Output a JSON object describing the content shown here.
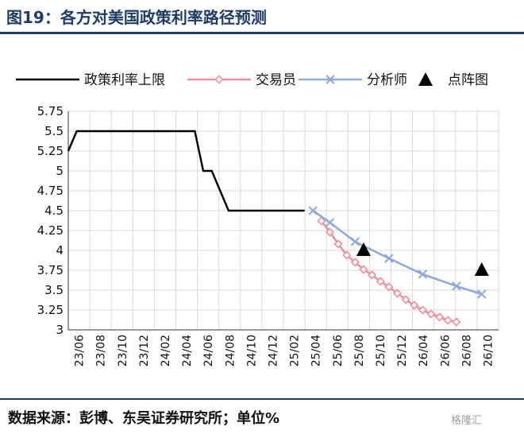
{
  "figure": {
    "title": "图19：各方对美国政策利率路径预测",
    "source": "数据来源：彭博、东吴证券研究所；单位%",
    "watermark": "格隆汇"
  },
  "chart_data": {
    "type": "line",
    "title": "",
    "xlabel": "",
    "ylabel": "",
    "ylim": [
      3,
      5.75
    ],
    "yticks": [
      "5.75",
      "5.5",
      "5.25",
      "5",
      "4.75",
      "4.5",
      "4.25",
      "4",
      "3.75",
      "3.5",
      "3.25",
      "3"
    ],
    "categories": [
      "23/06",
      "23/08",
      "23/10",
      "23/12",
      "24/02",
      "24/04",
      "24/06",
      "24/08",
      "24/10",
      "24/12",
      "25/02",
      "25/04",
      "25/06",
      "25/08",
      "25/10",
      "25/12",
      "26/04",
      "26/06",
      "26/08",
      "26/10"
    ],
    "grid": true,
    "legend_position": "top",
    "legend": [
      "政策利率上限",
      "交易员",
      "分析师",
      "点阵图"
    ],
    "series": [
      {
        "name": "政策利率上限",
        "style": "line",
        "color": "#000000",
        "points": [
          [
            0,
            5.25
          ],
          [
            1,
            5.5
          ],
          [
            2,
            5.5
          ],
          [
            3,
            5.5
          ],
          [
            4,
            5.5
          ],
          [
            5,
            5.5
          ],
          [
            6,
            5.5
          ],
          [
            7,
            5.5
          ],
          [
            8,
            5.5
          ],
          [
            9,
            5.5
          ],
          [
            10,
            5.5
          ],
          [
            11,
            5.5
          ],
          [
            12,
            5.5
          ],
          [
            13,
            5.5
          ],
          [
            14,
            5.5
          ],
          [
            15,
            5.5
          ],
          [
            16,
            5.0
          ],
          [
            17,
            5.0
          ],
          [
            18,
            4.75
          ],
          [
            19,
            4.5
          ],
          [
            20,
            4.5
          ],
          [
            21,
            4.5
          ],
          [
            22,
            4.5
          ],
          [
            23,
            4.5
          ],
          [
            24,
            4.5
          ],
          [
            25,
            4.5
          ],
          [
            26,
            4.5
          ],
          [
            27,
            4.5
          ],
          [
            28,
            4.5
          ]
        ]
      },
      {
        "name": "交易员",
        "style": "line-diamond",
        "color": "#f0919a",
        "points": [
          [
            30,
            4.37
          ],
          [
            31,
            4.23
          ],
          [
            32,
            4.08
          ],
          [
            33,
            3.94
          ],
          [
            34,
            3.85
          ],
          [
            35,
            3.76
          ],
          [
            36,
            3.69
          ],
          [
            37,
            3.61
          ],
          [
            38,
            3.54
          ],
          [
            39,
            3.46
          ],
          [
            40,
            3.38
          ],
          [
            41,
            3.31
          ],
          [
            42,
            3.25
          ],
          [
            43,
            3.2
          ],
          [
            44,
            3.16
          ],
          [
            45,
            3.12
          ],
          [
            46,
            3.1
          ]
        ]
      },
      {
        "name": "分析师",
        "style": "line-x",
        "color": "#8faadc",
        "points": [
          [
            29,
            4.5
          ],
          [
            31,
            4.35
          ],
          [
            34,
            4.11
          ],
          [
            38,
            3.9
          ],
          [
            42,
            3.7
          ],
          [
            46,
            3.55
          ],
          [
            49,
            3.45
          ]
        ]
      },
      {
        "name": "点阵图",
        "style": "triangle",
        "color": "#000000",
        "points": [
          [
            35,
            4.0
          ],
          [
            49,
            3.75
          ]
        ]
      }
    ],
    "x_range": [
      0,
      51
    ]
  }
}
